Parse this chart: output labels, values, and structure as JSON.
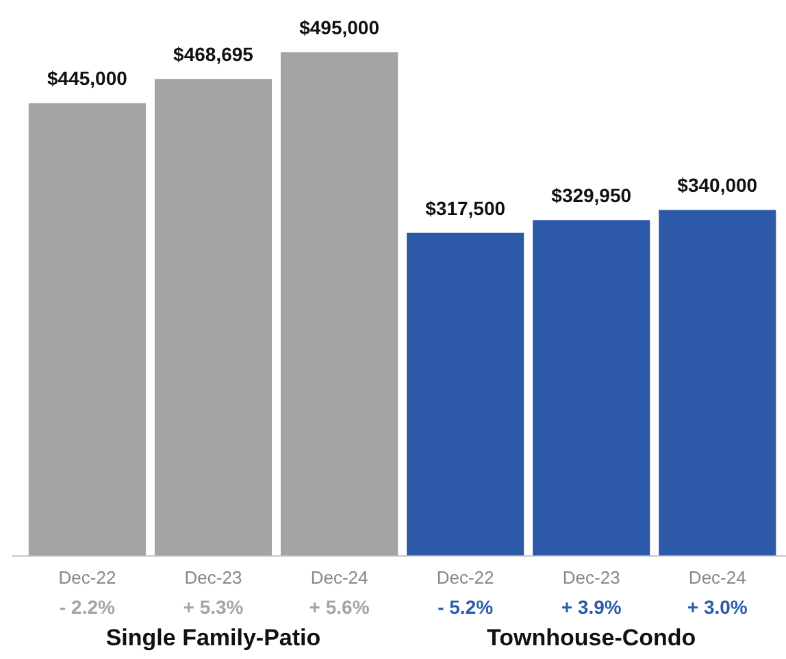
{
  "chart_data": {
    "type": "bar",
    "categories": [
      "Dec-22\n- 2.2%",
      "Dec-23\n+ 5.3%",
      "Dec-24\n+ 5.6%",
      "Dec-22\n- 5.2%",
      "Dec-23\n+ 3.9%",
      "Dec-24\n+ 3.0%"
    ],
    "values": [
      445000,
      468695,
      495000,
      317500,
      329950,
      340000
    ],
    "colors": [
      "#a4a4a4",
      "#a4a4a4",
      "#a4a4a4",
      "#2d5aa8",
      "#2d5aa8",
      "#2d5aa8"
    ],
    "value_labels": [
      "$445,000",
      "$468,695",
      "$495,000",
      "$317,500",
      "$329,950",
      "$340,000"
    ],
    "annotations": [
      "Single Family-Patio",
      "Townhouse-Condo"
    ],
    "grid": false
  }
}
